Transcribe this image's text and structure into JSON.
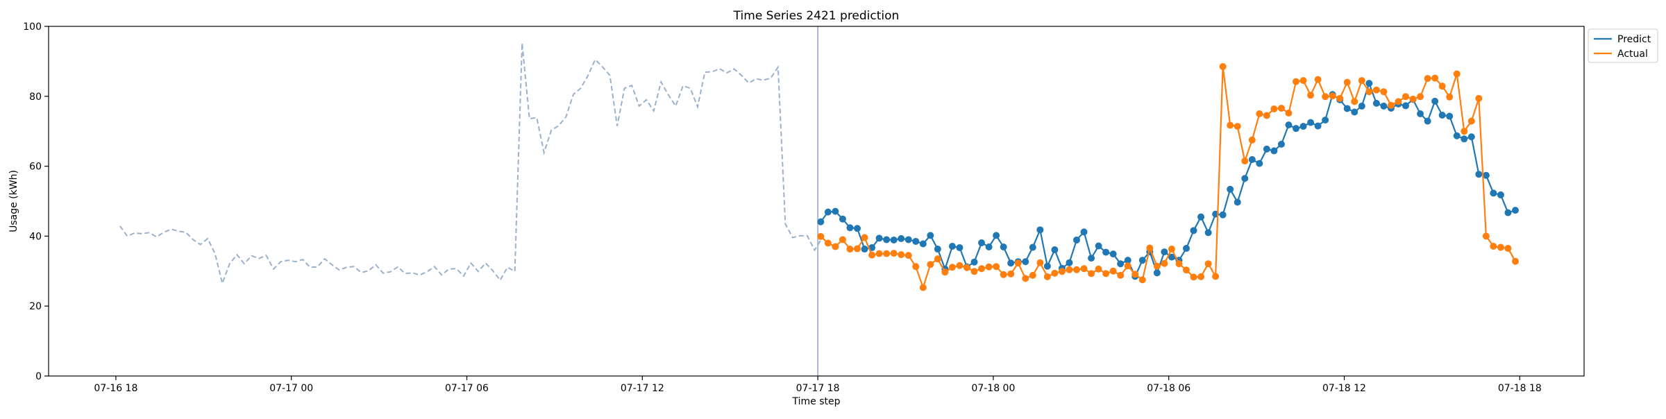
{
  "chart_data": {
    "type": "line",
    "title": "Time Series 2421 prediction",
    "xlabel": "Time step",
    "ylabel": "Usage (kWh)",
    "ylim": [
      0,
      100
    ],
    "y_ticks": [
      0,
      20,
      40,
      60,
      80,
      100
    ],
    "x_ticks": [
      "07-16 18",
      "07-17 00",
      "07-17 06",
      "07-17 12",
      "07-17 18",
      "07-18 00",
      "07-18 06",
      "07-18 12",
      "07-18 18"
    ],
    "x_tick_hours": [
      0,
      6,
      12,
      18,
      24,
      30,
      36,
      42,
      48
    ],
    "xlim_hours": [
      -2.3,
      50.2
    ],
    "legend_position": "top-right (outside plot)",
    "colors": {
      "history": "#9ab1cc",
      "predict": "#1f77b4",
      "actual": "#ff7f0e",
      "split_line": "#8ea6d0"
    },
    "split_hour": 24,
    "step_hours": 0.25,
    "history": {
      "start_hour": 0.14,
      "values": [
        42.9,
        40.0,
        40.9,
        40.7,
        41.0,
        39.8,
        41.1,
        42.0,
        41.4,
        41.1,
        39.0,
        37.6,
        39.3,
        35.0,
        26.5,
        32.1,
        34.7,
        32.1,
        34.4,
        33.6,
        34.5,
        30.6,
        32.7,
        33.1,
        32.7,
        33.3,
        31.1,
        31.2,
        33.5,
        31.8,
        30.3,
        31.1,
        31.3,
        29.6,
        30.1,
        31.8,
        29.4,
        29.8,
        31.2,
        29.3,
        29.5,
        28.9,
        29.8,
        31.3,
        28.9,
        30.6,
        30.7,
        28.6,
        32.3,
        29.9,
        32.3,
        30.1,
        27.4,
        31.1,
        29.9,
        95.2,
        73.6,
        73.9,
        63.9,
        70.3,
        71.6,
        74.1,
        80.5,
        82.3,
        85.9,
        90.5,
        88.4,
        86.0,
        71.5,
        82.3,
        83.1,
        77.2,
        79.0,
        75.8,
        84.1,
        80.4,
        77.2,
        83.0,
        82.3,
        77.0,
        86.9,
        87.0,
        87.9,
        86.7,
        87.8,
        86.0,
        83.8,
        85.0,
        84.6,
        85.2,
        88.3,
        43.5,
        39.6,
        40.1,
        40.1,
        36.0,
        39.4
      ]
    },
    "series": [
      {
        "name": "Predict",
        "start_hour": 24.1,
        "values": [
          44.1,
          46.9,
          47.1,
          44.9,
          42.4,
          42.2,
          36.3,
          36.7,
          39.4,
          39.0,
          38.9,
          39.3,
          39.0,
          38.5,
          37.8,
          40.2,
          36.3,
          30.6,
          37.1,
          36.7,
          31.2,
          32.6,
          38.1,
          36.9,
          40.2,
          36.9,
          32.3,
          32.7,
          32.7,
          36.8,
          41.8,
          31.4,
          36.1,
          30.8,
          32.4,
          38.9,
          41.2,
          33.7,
          37.2,
          35.4,
          34.9,
          32.1,
          33.1,
          28.5,
          33.1,
          35.5,
          29.5,
          35.5,
          34.0,
          33.1,
          36.5,
          41.6,
          45.5,
          41.0,
          46.3,
          46.1,
          53.4,
          49.7,
          56.5,
          61.9,
          60.8,
          64.9,
          64.4,
          66.3,
          71.8,
          70.8,
          71.4,
          72.5,
          71.5,
          73.2,
          80.5,
          79.0,
          76.5,
          75.5,
          77.2,
          83.7,
          78.0,
          77.2,
          76.6,
          77.8,
          77.3,
          79.1,
          75.0,
          72.9,
          78.6,
          74.6,
          74.3,
          68.7,
          67.8,
          68.4,
          57.7,
          57.4,
          52.3,
          51.8,
          46.7,
          47.4
        ]
      },
      {
        "name": "Actual",
        "start_hour": 24.1,
        "values": [
          39.9,
          38.0,
          37.0,
          39.0,
          36.3,
          36.4,
          39.6,
          34.6,
          35.0,
          35.0,
          35.1,
          34.7,
          34.5,
          31.3,
          25.3,
          31.9,
          33.5,
          29.7,
          31.1,
          31.6,
          31.0,
          29.9,
          30.7,
          31.2,
          31.3,
          29.0,
          29.2,
          32.3,
          27.9,
          28.8,
          32.4,
          28.4,
          29.4,
          29.9,
          30.4,
          30.4,
          30.7,
          29.3,
          30.6,
          29.3,
          30.0,
          28.8,
          31.5,
          29.1,
          27.5,
          36.6,
          31.4,
          32.2,
          36.3,
          32.1,
          30.3,
          28.3,
          28.4,
          32.1,
          28.5,
          88.5,
          71.7,
          71.4,
          61.5,
          67.5,
          75.0,
          74.5,
          76.4,
          76.6,
          75.2,
          84.2,
          84.5,
          80.3,
          84.8,
          79.9,
          80.1,
          79.4,
          84.0,
          78.5,
          84.5,
          81.3,
          81.8,
          81.3,
          77.4,
          78.5,
          79.9,
          79.2,
          79.9,
          85.1,
          85.2,
          82.9,
          79.8,
          86.4,
          70.0,
          72.9,
          79.4,
          40.0,
          37.1,
          36.8,
          36.5,
          32.8
        ]
      }
    ]
  }
}
